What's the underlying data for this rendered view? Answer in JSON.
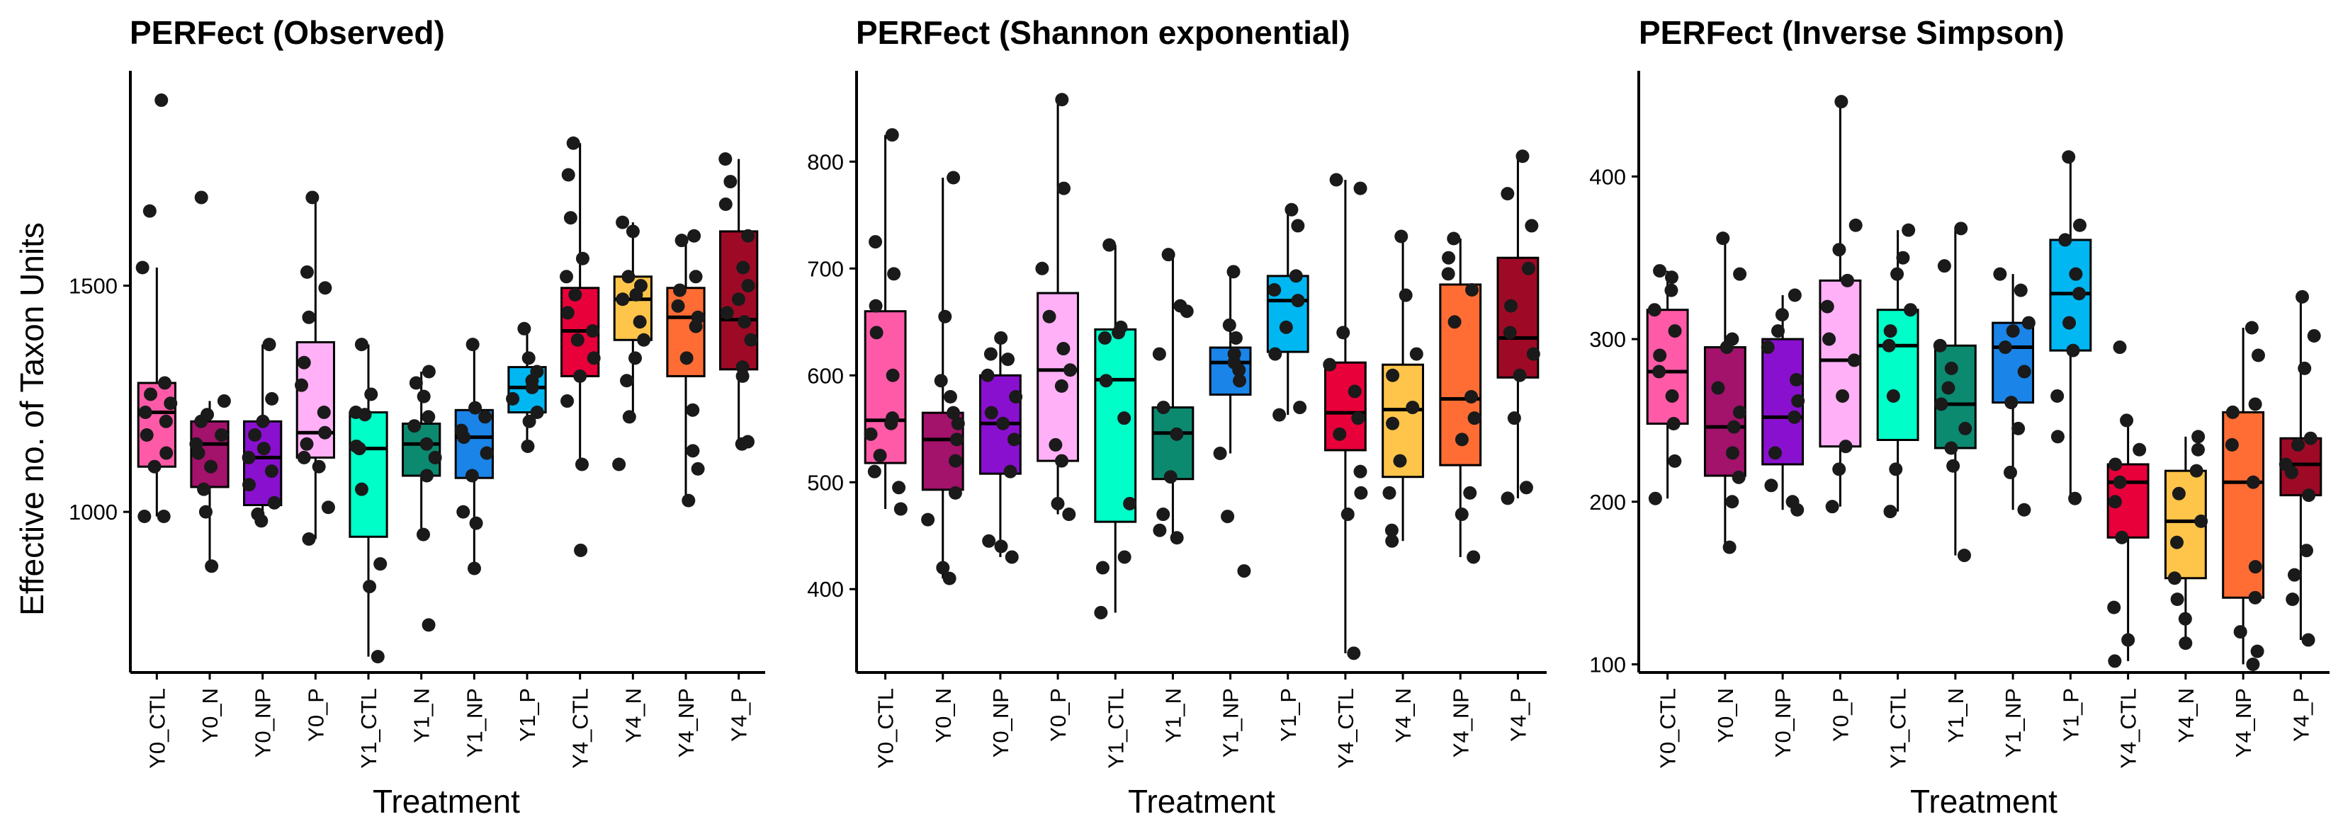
{
  "colors": {
    "Y0_CTL": "#ff5aa8",
    "Y0_N": "#a3126b",
    "Y0_NP": "#8a10cf",
    "Y0_P": "#ffb0f6",
    "Y1_CTL": "#00ffc8",
    "Y1_N": "#0c8a70",
    "Y1_NP": "#1a84e8",
    "Y1_P": "#00b7f2",
    "Y4_CTL": "#e8003a",
    "Y4_N": "#ffc54a",
    "Y4_NP": "#ff6d34",
    "Y4_P": "#9e0a26",
    "point": "#1a1a1a",
    "line": "#000000"
  },
  "chart_data": [
    {
      "type": "box",
      "title": "PERFect (Observed)",
      "xlabel": "Treatment",
      "ylabel": "Effective no. of Taxon Units",
      "categories": [
        "Y0_CTL",
        "Y0_N",
        "Y0_NP",
        "Y0_P",
        "Y1_CTL",
        "Y1_N",
        "Y1_NP",
        "Y1_P",
        "Y4_CTL",
        "Y4_N",
        "Y4_NP",
        "Y4_P"
      ],
      "yticks": [
        1000,
        1500
      ],
      "ylim": [
        645,
        1975
      ],
      "boxes": [
        {
          "q1": 1100,
          "median": 1220,
          "q3": 1285,
          "lo": 990,
          "hi": 1540
        },
        {
          "q1": 1055,
          "median": 1150,
          "q3": 1200,
          "lo": 880,
          "hi": 1245
        },
        {
          "q1": 1015,
          "median": 1120,
          "q3": 1200,
          "lo": 980,
          "hi": 1370
        },
        {
          "q1": 1120,
          "median": 1175,
          "q3": 1375,
          "lo": 940,
          "hi": 1695
        },
        {
          "q1": 945,
          "median": 1140,
          "q3": 1220,
          "lo": 680,
          "hi": 1370
        },
        {
          "q1": 1080,
          "median": 1150,
          "q3": 1195,
          "lo": 950,
          "hi": 1310
        },
        {
          "q1": 1075,
          "median": 1165,
          "q3": 1225,
          "lo": 875,
          "hi": 1370
        },
        {
          "q1": 1220,
          "median": 1275,
          "q3": 1320,
          "lo": 1145,
          "hi": 1405
        },
        {
          "q1": 1300,
          "median": 1400,
          "q3": 1495,
          "lo": 1105,
          "hi": 1815
        },
        {
          "q1": 1380,
          "median": 1470,
          "q3": 1520,
          "lo": 1210,
          "hi": 1640
        },
        {
          "q1": 1300,
          "median": 1430,
          "q3": 1495,
          "lo": 1025,
          "hi": 1610
        },
        {
          "q1": 1315,
          "median": 1425,
          "q3": 1620,
          "lo": 1150,
          "hi": 1780
        }
      ],
      "points": [
        [
          990,
          990,
          1100,
          1130,
          1170,
          1200,
          1220,
          1240,
          1260,
          1285,
          1540,
          1665,
          1910
        ],
        [
          880,
          1000,
          1050,
          1100,
          1130,
          1150,
          1170,
          1200,
          1215,
          1245,
          1695
        ],
        [
          980,
          995,
          1020,
          1060,
          1090,
          1120,
          1140,
          1170,
          1200,
          1250,
          1370
        ],
        [
          940,
          1010,
          1100,
          1120,
          1150,
          1175,
          1220,
          1280,
          1330,
          1430,
          1495,
          1530,
          1695
        ],
        [
          680,
          835,
          885,
          1050,
          1140,
          1145,
          1215,
          1220,
          1260,
          1370
        ],
        [
          750,
          950,
          1080,
          1120,
          1150,
          1190,
          1210,
          1255,
          1285,
          1310
        ],
        [
          875,
          975,
          1000,
          1080,
          1130,
          1165,
          1180,
          1210,
          1230,
          1370
        ],
        [
          1145,
          1200,
          1220,
          1250,
          1275,
          1290,
          1310,
          1340,
          1405
        ],
        [
          915,
          1105,
          1245,
          1300,
          1340,
          1380,
          1400,
          1440,
          1480,
          1520,
          1560,
          1650,
          1745,
          1815
        ],
        [
          1105,
          1210,
          1290,
          1340,
          1380,
          1420,
          1470,
          1480,
          1500,
          1520,
          1620,
          1640
        ],
        [
          1025,
          1095,
          1135,
          1225,
          1340,
          1410,
          1430,
          1455,
          1490,
          1520,
          1600,
          1610
        ],
        [
          1150,
          1155,
          1300,
          1320,
          1380,
          1420,
          1440,
          1470,
          1500,
          1540,
          1610,
          1680,
          1730,
          1780
        ]
      ]
    },
    {
      "type": "box",
      "title": "PERFect (Shannon exponential)",
      "xlabel": "Treatment",
      "ylabel": "",
      "categories": [
        "Y0_CTL",
        "Y0_N",
        "Y0_NP",
        "Y0_P",
        "Y1_CTL",
        "Y1_N",
        "Y1_NP",
        "Y1_P",
        "Y4_CTL",
        "Y4_N",
        "Y4_NP",
        "Y4_P"
      ],
      "yticks": [
        400,
        500,
        600,
        700,
        800
      ],
      "ylim": [
        322,
        885
      ],
      "boxes": [
        {
          "q1": 518,
          "median": 558,
          "q3": 660,
          "lo": 475,
          "hi": 825
        },
        {
          "q1": 493,
          "median": 540,
          "q3": 565,
          "lo": 410,
          "hi": 785
        },
        {
          "q1": 508,
          "median": 555,
          "q3": 600,
          "lo": 430,
          "hi": 635
        },
        {
          "q1": 520,
          "median": 605,
          "q3": 677,
          "lo": 470,
          "hi": 858
        },
        {
          "q1": 463,
          "median": 596,
          "q3": 643,
          "lo": 378,
          "hi": 722
        },
        {
          "q1": 503,
          "median": 546,
          "q3": 570,
          "lo": 448,
          "hi": 713
        },
        {
          "q1": 582,
          "median": 612,
          "q3": 626,
          "lo": 527,
          "hi": 697
        },
        {
          "q1": 622,
          "median": 670,
          "q3": 693,
          "lo": 563,
          "hi": 755
        },
        {
          "q1": 530,
          "median": 565,
          "q3": 612,
          "lo": 340,
          "hi": 783
        },
        {
          "q1": 505,
          "median": 568,
          "q3": 610,
          "lo": 445,
          "hi": 730
        },
        {
          "q1": 516,
          "median": 578,
          "q3": 685,
          "lo": 430,
          "hi": 728
        },
        {
          "q1": 598,
          "median": 635,
          "q3": 710,
          "lo": 485,
          "hi": 805
        }
      ],
      "points": [
        [
          475,
          495,
          510,
          525,
          545,
          555,
          560,
          600,
          640,
          665,
          695,
          725,
          825
        ],
        [
          410,
          420,
          465,
          490,
          520,
          540,
          555,
          565,
          580,
          595,
          655,
          785
        ],
        [
          430,
          440,
          445,
          510,
          540,
          555,
          565,
          580,
          600,
          615,
          620,
          635
        ],
        [
          470,
          480,
          520,
          535,
          590,
          605,
          625,
          655,
          700,
          775,
          858
        ],
        [
          378,
          420,
          430,
          480,
          560,
          595,
          635,
          640,
          645,
          722
        ],
        [
          448,
          455,
          470,
          505,
          545,
          570,
          620,
          660,
          665,
          713
        ],
        [
          417,
          468,
          527,
          595,
          605,
          612,
          620,
          635,
          647,
          697
        ],
        [
          563,
          570,
          620,
          645,
          670,
          680,
          693,
          740,
          755
        ],
        [
          340,
          470,
          490,
          510,
          545,
          560,
          585,
          610,
          640,
          775,
          783
        ],
        [
          445,
          455,
          490,
          520,
          555,
          570,
          600,
          620,
          675,
          730
        ],
        [
          430,
          470,
          490,
          540,
          560,
          580,
          650,
          680,
          695,
          710,
          728
        ],
        [
          485,
          495,
          560,
          600,
          620,
          640,
          665,
          700,
          740,
          770,
          805
        ]
      ]
    },
    {
      "type": "box",
      "title": "PERFect (Inverse Simpson)",
      "xlabel": "Treatment",
      "ylabel": "",
      "categories": [
        "Y0_CTL",
        "Y0_N",
        "Y0_NP",
        "Y0_P",
        "Y1_CTL",
        "Y1_N",
        "Y1_NP",
        "Y1_P",
        "Y4_CTL",
        "Y4_N",
        "Y4_NP",
        "Y4_P"
      ],
      "yticks": [
        100,
        200,
        300,
        400
      ],
      "ylim": [
        95,
        465
      ],
      "boxes": [
        {
          "q1": 248,
          "median": 280,
          "q3": 318,
          "lo": 202,
          "hi": 342
        },
        {
          "q1": 216,
          "median": 246,
          "q3": 295,
          "lo": 172,
          "hi": 362
        },
        {
          "q1": 223,
          "median": 252,
          "q3": 300,
          "lo": 195,
          "hi": 327
        },
        {
          "q1": 234,
          "median": 287,
          "q3": 336,
          "lo": 197,
          "hi": 446
        },
        {
          "q1": 238,
          "median": 296,
          "q3": 318,
          "lo": 194,
          "hi": 367
        },
        {
          "q1": 233,
          "median": 260,
          "q3": 296,
          "lo": 167,
          "hi": 368
        },
        {
          "q1": 261,
          "median": 295,
          "q3": 310,
          "lo": 195,
          "hi": 340
        },
        {
          "q1": 293,
          "median": 328,
          "q3": 361,
          "lo": 202,
          "hi": 412
        },
        {
          "q1": 178,
          "median": 212,
          "q3": 223,
          "lo": 102,
          "hi": 250
        },
        {
          "q1": 153,
          "median": 188,
          "q3": 219,
          "lo": 113,
          "hi": 240
        },
        {
          "q1": 141,
          "median": 212,
          "q3": 255,
          "lo": 100,
          "hi": 307
        },
        {
          "q1": 204,
          "median": 223,
          "q3": 239,
          "lo": 115,
          "hi": 326
        }
      ],
      "points": [
        [
          202,
          225,
          248,
          265,
          280,
          290,
          305,
          318,
          330,
          338,
          342
        ],
        [
          172,
          200,
          215,
          230,
          246,
          255,
          270,
          295,
          300,
          340,
          362
        ],
        [
          195,
          200,
          210,
          230,
          252,
          262,
          275,
          295,
          305,
          315,
          327
        ],
        [
          197,
          220,
          234,
          265,
          287,
          300,
          320,
          336,
          355,
          370,
          446
        ],
        [
          194,
          220,
          265,
          296,
          305,
          318,
          340,
          350,
          367
        ],
        [
          167,
          222,
          233,
          245,
          260,
          270,
          282,
          296,
          345,
          368
        ],
        [
          195,
          218,
          245,
          261,
          280,
          295,
          305,
          310,
          330,
          340
        ],
        [
          202,
          240,
          265,
          293,
          310,
          328,
          340,
          361,
          370,
          412
        ],
        [
          102,
          115,
          135,
          178,
          200,
          212,
          223,
          232,
          250,
          295
        ],
        [
          113,
          128,
          140,
          153,
          175,
          188,
          205,
          219,
          232,
          240
        ],
        [
          100,
          108,
          120,
          141,
          160,
          212,
          235,
          255,
          260,
          290,
          307
        ],
        [
          115,
          140,
          155,
          170,
          204,
          218,
          223,
          235,
          239,
          282,
          302,
          326
        ]
      ]
    }
  ]
}
